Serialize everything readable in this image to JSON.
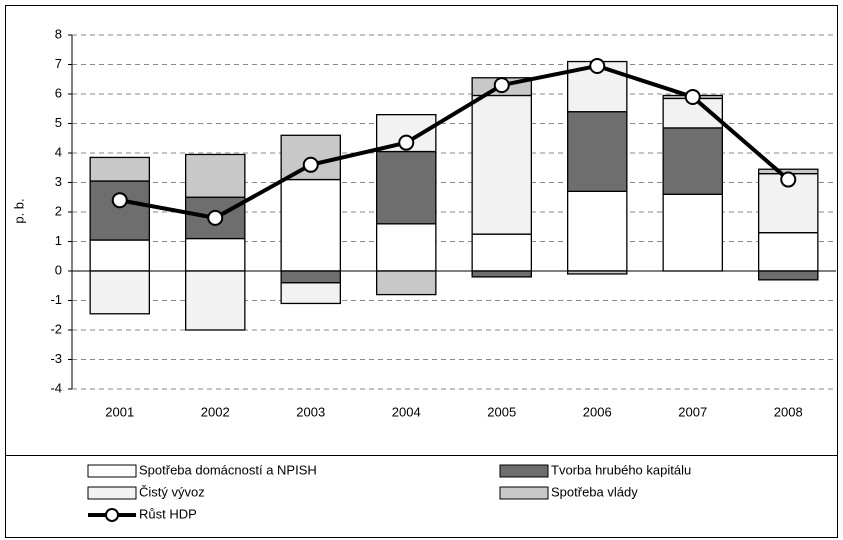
{
  "chart_data": {
    "type": "bar",
    "stacked": true,
    "y_label": "p. b.",
    "categories": [
      "2001",
      "2002",
      "2003",
      "2004",
      "2005",
      "2006",
      "2007",
      "2008"
    ],
    "ylim": [
      -4,
      8
    ],
    "yticks": [
      -4,
      -3,
      -2,
      -1,
      0,
      1,
      2,
      3,
      4,
      5,
      6,
      7,
      8
    ],
    "grid": true,
    "series": [
      {
        "name": "Spotřeba domácností a NPISH",
        "type": "bar",
        "color": "#ffffff",
        "values": [
          1.05,
          1.1,
          3.1,
          1.6,
          1.25,
          2.7,
          2.6,
          1.3
        ]
      },
      {
        "name": "Tvorba hrubého kapitálu",
        "type": "bar",
        "color": "#6e6e6e",
        "values": [
          2.0,
          1.4,
          -0.4,
          2.45,
          -0.2,
          2.7,
          2.25,
          -0.3
        ]
      },
      {
        "name": "Čistý vývoz",
        "type": "bar",
        "color": "#f2f2f2",
        "values": [
          -1.45,
          -2.0,
          -0.7,
          1.25,
          4.7,
          1.7,
          1.0,
          2.0
        ]
      },
      {
        "name": "Spotřeba vlády",
        "type": "bar",
        "color": "#c8c8c8",
        "values": [
          0.8,
          1.45,
          1.5,
          -0.8,
          0.6,
          -0.1,
          0.1,
          0.15
        ]
      },
      {
        "name": "Růst HDP",
        "type": "line",
        "color": "#000000",
        "values": [
          2.4,
          1.8,
          3.6,
          4.35,
          6.3,
          6.95,
          5.9,
          3.1
        ]
      }
    ]
  }
}
